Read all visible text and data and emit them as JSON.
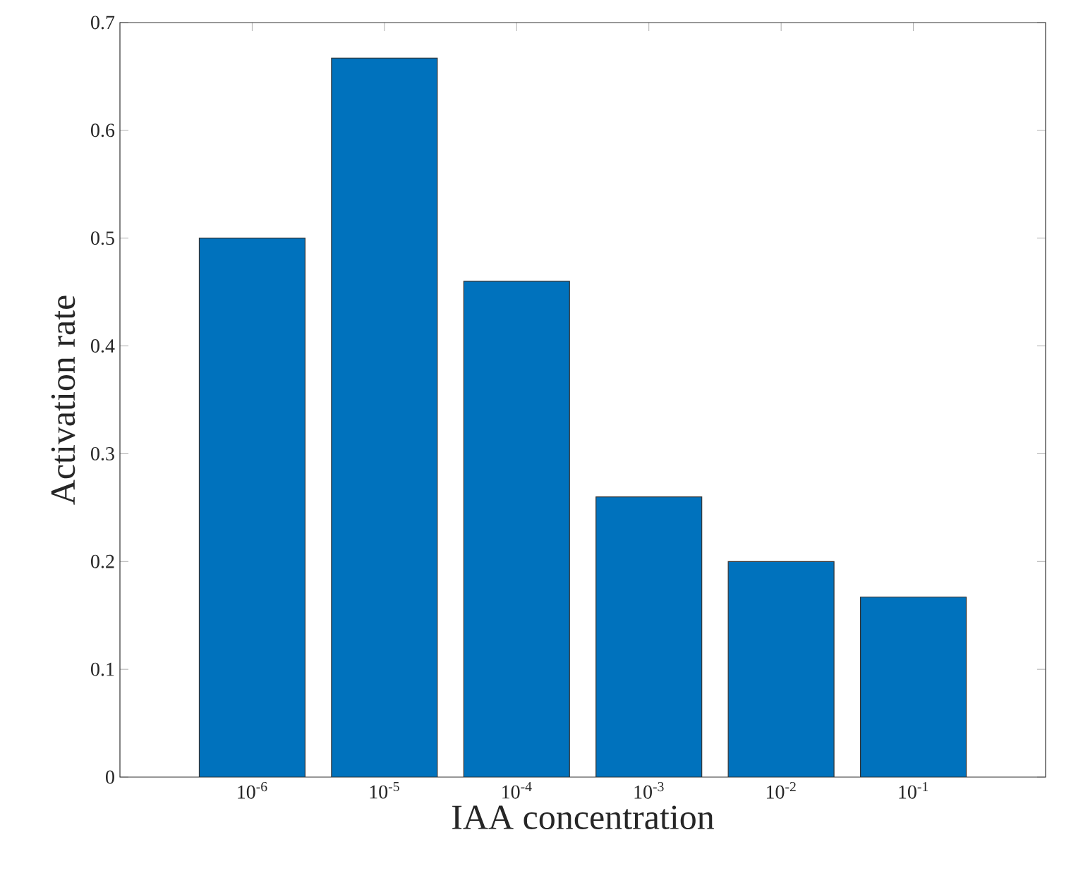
{
  "chart_data": {
    "type": "bar",
    "xlabel": "IAA concentration",
    "ylabel": "Activation rate",
    "categories": [
      "10$^{-6}$",
      "10$^{-5}$",
      "10$^{-4}$",
      "10$^{-3}$",
      "10$^{-2}$",
      "10$^{-1}$"
    ],
    "values": [
      0.5,
      0.667,
      0.46,
      0.26,
      0.2,
      0.167
    ],
    "color": "#0072bd",
    "ylim": [
      0,
      0.7
    ],
    "yticks": [
      0,
      0.1,
      0.2,
      0.3,
      0.4,
      0.5,
      0.6,
      0.7
    ],
    "grid": false
  }
}
